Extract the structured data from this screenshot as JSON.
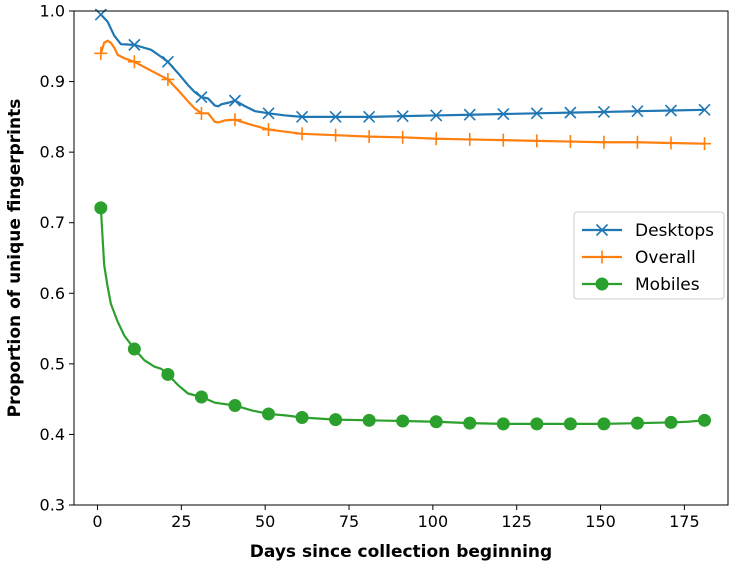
{
  "chart_data": {
    "type": "line",
    "title": "",
    "xlabel": "Days since collection beginning",
    "ylabel": "Proportion of unique fingerprints",
    "xlim": [
      -7,
      188
    ],
    "ylim": [
      0.3,
      1.0
    ],
    "xticks": [
      0,
      25,
      50,
      75,
      100,
      125,
      150,
      175
    ],
    "yticks": [
      0.3,
      0.4,
      0.5,
      0.6,
      0.7,
      0.8,
      0.9,
      1.0
    ],
    "xtick_labels": [
      "0",
      "25",
      "50",
      "75",
      "100",
      "125",
      "150",
      "175"
    ],
    "ytick_labels": [
      "0.3",
      "0.4",
      "0.5",
      "0.6",
      "0.7",
      "0.8",
      "0.9",
      "1.0"
    ],
    "grid": false,
    "legend_position": "center-right",
    "series": [
      {
        "name": "Desktops",
        "color": "#1f77b4",
        "marker": "x",
        "x": [
          1,
          3,
          5,
          7,
          11,
          16,
          19,
          21,
          24,
          27,
          29,
          31,
          33,
          35,
          36,
          37,
          39,
          41,
          44,
          47,
          51,
          56,
          61,
          71,
          81,
          91,
          101,
          111,
          121,
          131,
          141,
          151,
          161,
          171,
          181
        ],
        "y": [
          0.995,
          0.985,
          0.965,
          0.953,
          0.952,
          0.945,
          0.935,
          0.928,
          0.912,
          0.895,
          0.885,
          0.878,
          0.876,
          0.866,
          0.865,
          0.868,
          0.87,
          0.873,
          0.865,
          0.858,
          0.855,
          0.852,
          0.85,
          0.85,
          0.85,
          0.851,
          0.852,
          0.853,
          0.854,
          0.855,
          0.856,
          0.857,
          0.858,
          0.859,
          0.86
        ],
        "marker_x": [
          1,
          11,
          21,
          31,
          41,
          51,
          61,
          71,
          81,
          91,
          101,
          111,
          121,
          131,
          141,
          151,
          161,
          171,
          181
        ]
      },
      {
        "name": "Overall",
        "color": "#ff7f0e",
        "marker": "+",
        "x": [
          1,
          2,
          3,
          4,
          5,
          6,
          8,
          11,
          15,
          19,
          21,
          24,
          27,
          29,
          31,
          33,
          35,
          36,
          38,
          41,
          45,
          51,
          56,
          61,
          71,
          81,
          91,
          101,
          111,
          121,
          131,
          141,
          151,
          161,
          171,
          181
        ],
        "y": [
          0.94,
          0.955,
          0.958,
          0.955,
          0.948,
          0.938,
          0.933,
          0.928,
          0.918,
          0.908,
          0.903,
          0.888,
          0.872,
          0.862,
          0.855,
          0.855,
          0.843,
          0.842,
          0.845,
          0.846,
          0.84,
          0.832,
          0.829,
          0.826,
          0.824,
          0.822,
          0.821,
          0.819,
          0.818,
          0.817,
          0.816,
          0.815,
          0.814,
          0.814,
          0.813,
          0.812
        ],
        "marker_x": [
          1,
          11,
          21,
          31,
          41,
          51,
          61,
          71,
          81,
          91,
          101,
          111,
          121,
          131,
          141,
          151,
          161,
          171,
          181
        ]
      },
      {
        "name": "Mobiles",
        "color": "#2ca02c",
        "marker": "o",
        "x": [
          1,
          2,
          3,
          4,
          6,
          8,
          11,
          14,
          17,
          19,
          21,
          24,
          27,
          31,
          35,
          41,
          46,
          51,
          56,
          61,
          71,
          81,
          91,
          101,
          111,
          121,
          131,
          141,
          151,
          161,
          171,
          176,
          181
        ],
        "y": [
          0.721,
          0.64,
          0.61,
          0.585,
          0.56,
          0.54,
          0.521,
          0.505,
          0.496,
          0.493,
          0.485,
          0.47,
          0.458,
          0.453,
          0.445,
          0.441,
          0.434,
          0.429,
          0.427,
          0.424,
          0.421,
          0.42,
          0.419,
          0.418,
          0.416,
          0.415,
          0.415,
          0.415,
          0.415,
          0.416,
          0.417,
          0.418,
          0.42
        ],
        "marker_x": [
          1,
          11,
          21,
          31,
          41,
          51,
          61,
          71,
          81,
          91,
          101,
          111,
          121,
          131,
          141,
          151,
          161,
          171,
          181
        ]
      }
    ]
  }
}
